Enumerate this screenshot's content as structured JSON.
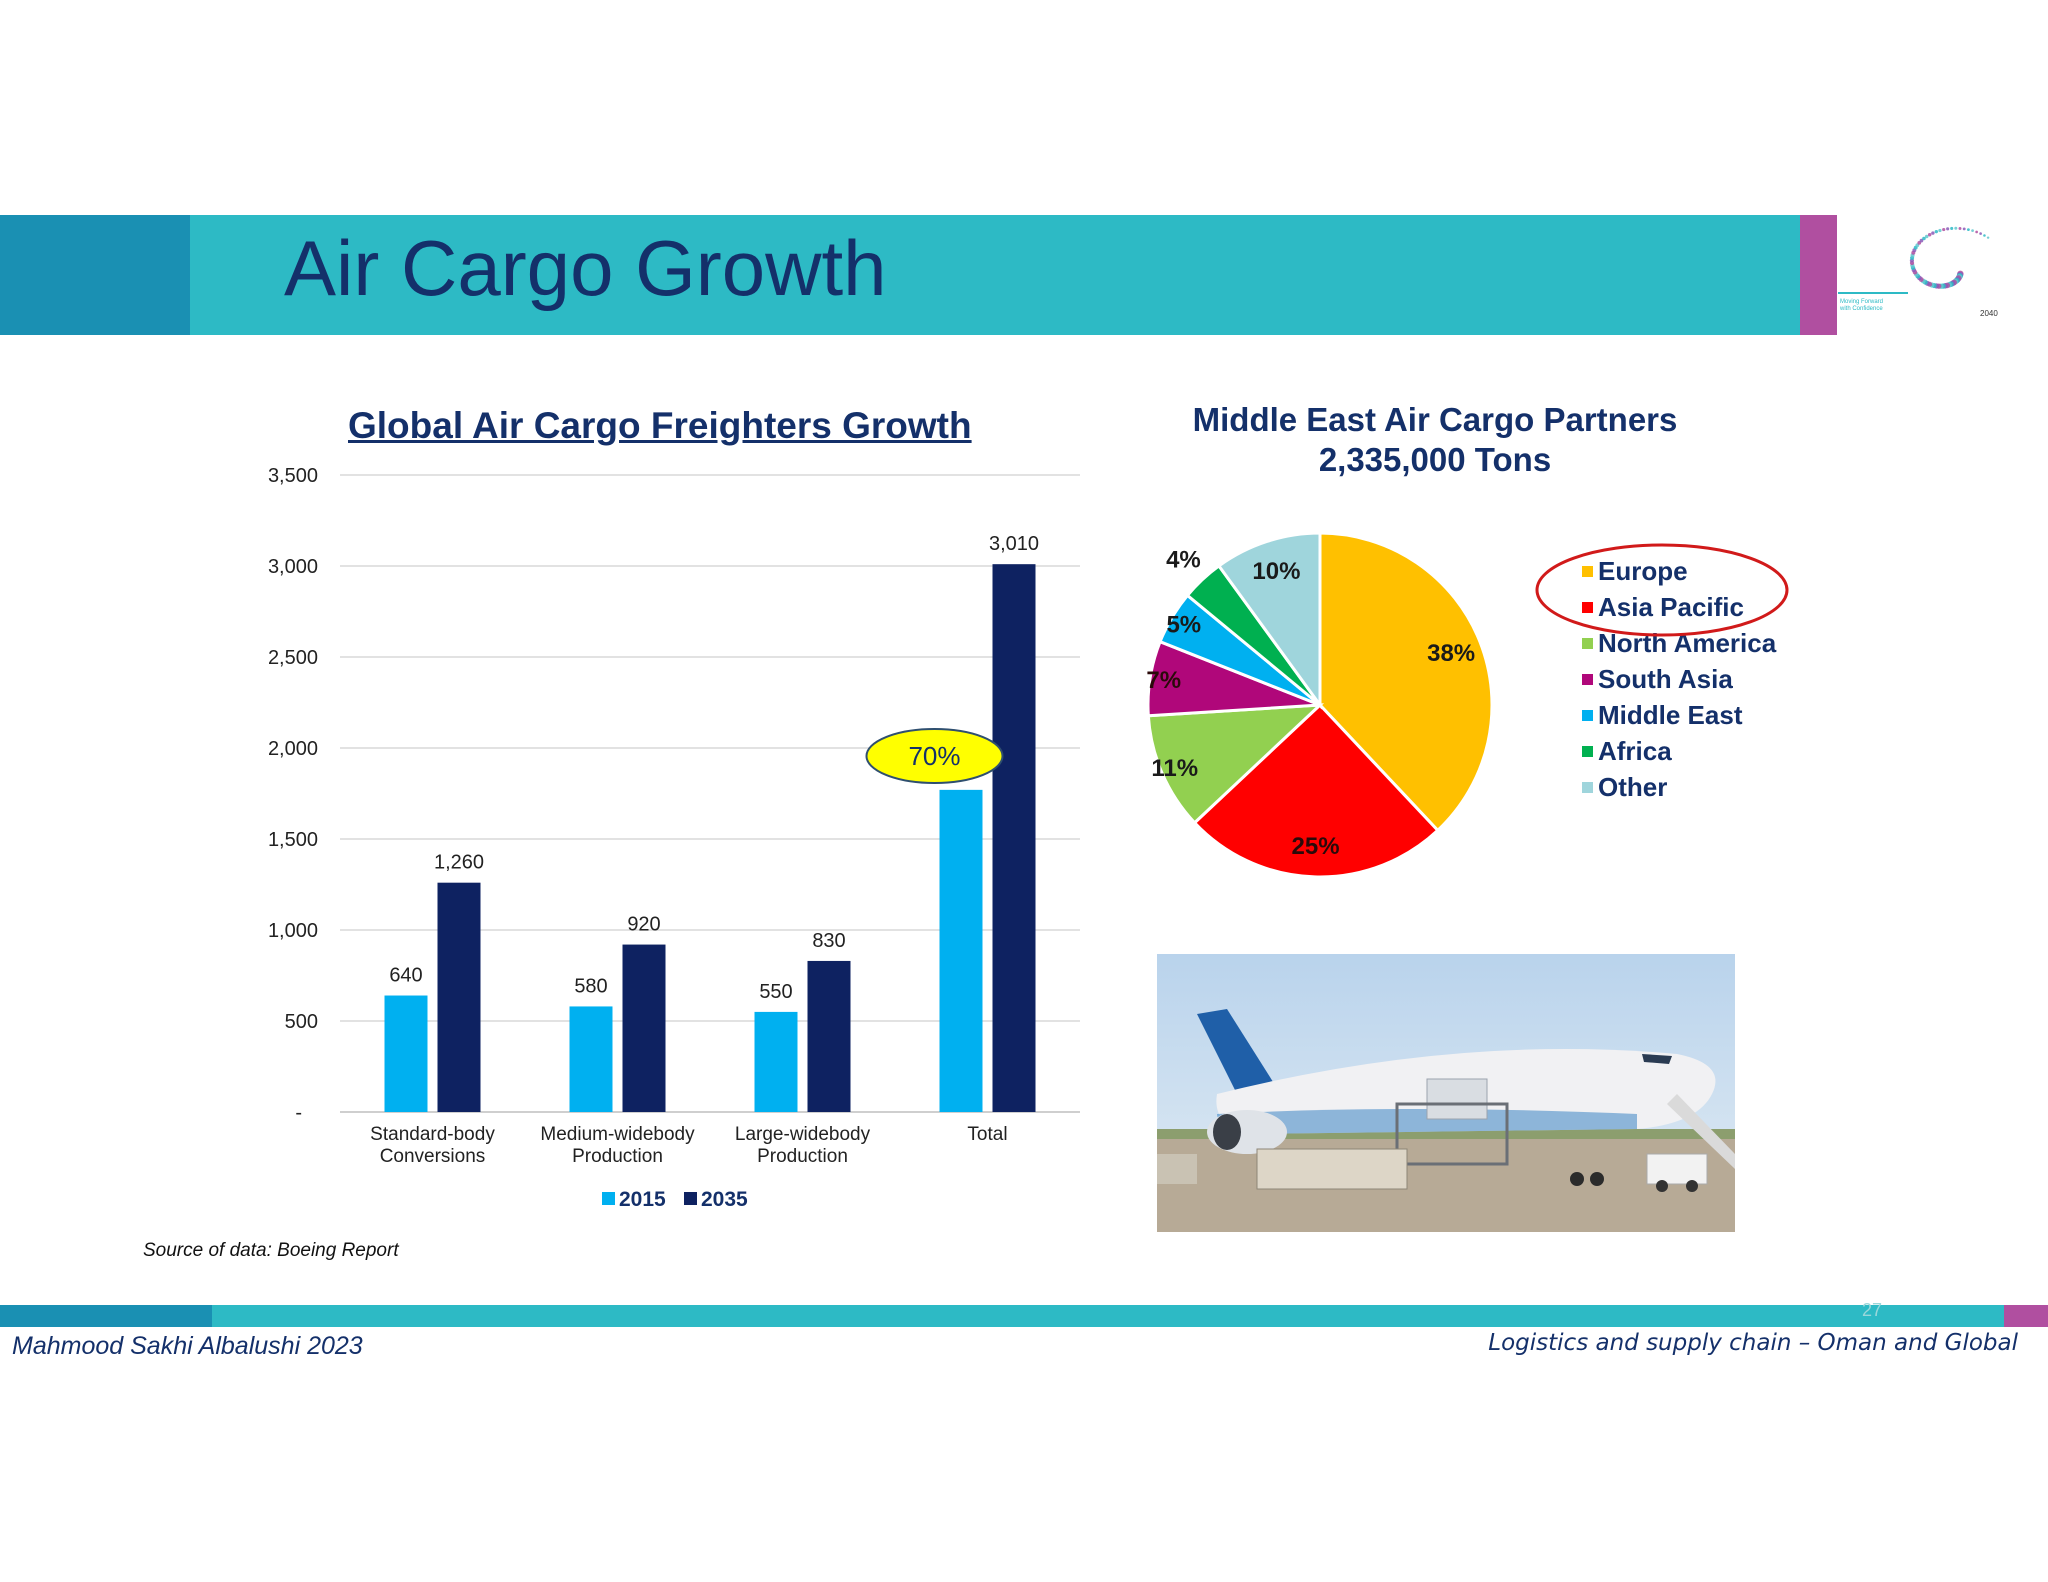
{
  "slide": {
    "title": "Air Cargo Growth",
    "source": "Source of data: Boeing Report",
    "page_number": "27",
    "author": "Mahmood Sakhi Albalushi   2023",
    "topic": "Logistics and supply chain – Oman and Global",
    "colors": {
      "band": "#2dbac5",
      "band_dark": "#1a90b3",
      "accent": "#b04fa0",
      "title": "#14306a"
    }
  },
  "logo": {
    "lines": [
      "Moving Forward",
      "with Confidence"
    ],
    "year": "2040",
    "icon": "dotted-swirl-logo"
  },
  "photo": {
    "icon": "cargo-plane-photo"
  },
  "chart_data": [
    {
      "type": "bar",
      "title": "Global Air Cargo Freighters Growth",
      "categories": [
        [
          "Standard-body",
          "Conversions"
        ],
        [
          "Medium-widebody",
          "Production"
        ],
        [
          "Large-widebody",
          "Production"
        ],
        [
          "Total"
        ]
      ],
      "series": [
        {
          "name": "2015",
          "values": [
            640,
            580,
            550,
            1770
          ],
          "labels": [
            "640",
            "580",
            "550",
            ""
          ],
          "color": "#00b0f0"
        },
        {
          "name": "2035",
          "values": [
            1260,
            920,
            830,
            3010
          ],
          "labels": [
            "1,260",
            "920",
            "830",
            "3,010"
          ],
          "color": "#0e2261"
        }
      ],
      "y_ticks": [
        "-",
        "500",
        "1,000",
        "1,500",
        "2,000",
        "2,500",
        "3,000",
        "3,500"
      ],
      "ylim": [
        0,
        3500
      ],
      "grid": true,
      "legend": "bottom",
      "annotation": {
        "text": "70%",
        "color": "#ffff00"
      }
    },
    {
      "type": "pie",
      "title": [
        "Middle East Air Cargo Partners",
        "2,335,000 Tons"
      ],
      "slices": [
        {
          "label": "Europe",
          "value": 38,
          "text": "38%",
          "color": "#ffc000"
        },
        {
          "label": "Asia Pacific",
          "value": 25,
          "text": "25%",
          "color": "#ff0000"
        },
        {
          "label": "North America",
          "value": 11,
          "text": "11%",
          "color": "#92d050"
        },
        {
          "label": "South Asia",
          "value": 7,
          "text": "7%",
          "color": "#b0077a"
        },
        {
          "label": "Middle East",
          "value": 5,
          "text": "5%",
          "color": "#00b0f0"
        },
        {
          "label": "Africa",
          "value": 4,
          "text": "4%",
          "color": "#00b050"
        },
        {
          "label": "Other",
          "value": 10,
          "text": "10%",
          "color": "#9fd5dc"
        }
      ],
      "legend": "right",
      "highlight": {
        "labels": [
          "Europe",
          "Asia Pacific"
        ],
        "color": "#d11a1a"
      }
    }
  ]
}
